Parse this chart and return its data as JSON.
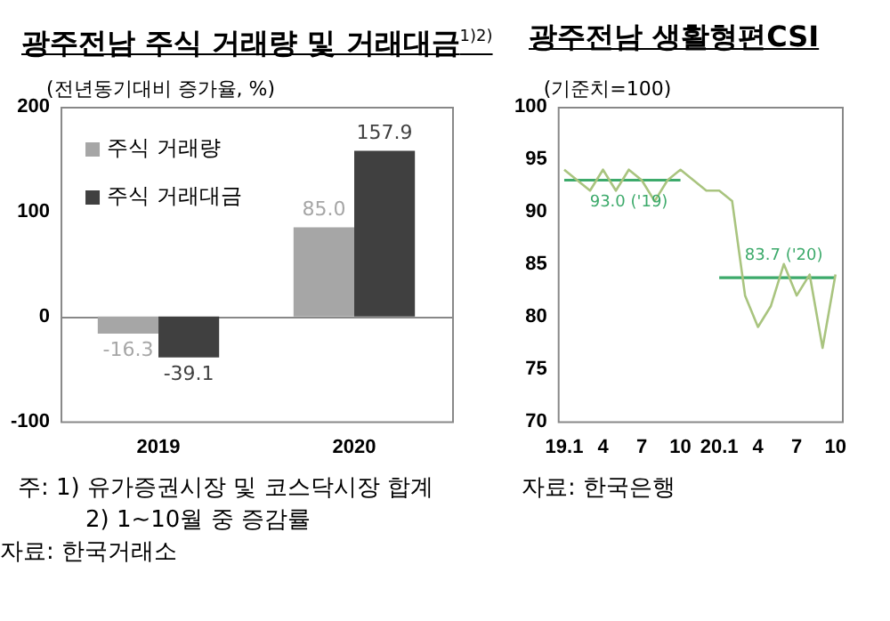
{
  "chart_data": [
    {
      "type": "bar",
      "title": "광주전남 주식 거래량 및 거래대금$^{1)2)}$",
      "ylabel": "(전년동기대비 증가율, %)",
      "categories": [
        "2019",
        "2020"
      ],
      "series": [
        {
          "name": "주식 거래량",
          "color": "#a6a6a6",
          "values": [
            -16.3,
            85.0
          ],
          "value_labels": [
            "-16.3",
            "85.0"
          ]
        },
        {
          "name": "주식 거래대금",
          "color": "#404040",
          "values": [
            -39.1,
            157.9
          ],
          "value_labels": [
            "-39.1",
            "157.9"
          ]
        }
      ],
      "ylim": [
        -100,
        200
      ],
      "yticks": [
        -100,
        0,
        100,
        200
      ],
      "grid": false,
      "legend": "top left",
      "ref_lines": [
        {
          "axis": "y",
          "value": 0,
          "color": "#888888"
        }
      ],
      "annotations": [
        "주: 1) 유가증권시장 및 코스닥시장 합계",
        "2) 1~10월 중 증감률",
        "자료: 한국거래소"
      ]
    },
    {
      "type": "line",
      "title": "광주전남 생활형편CSI",
      "ylabel": "(기준치=100)",
      "categories": [
        "19.1",
        null,
        null,
        "4",
        null,
        null,
        "7",
        null,
        null,
        "10",
        null,
        null,
        "20.1",
        null,
        null,
        "4",
        null,
        null,
        "7",
        null,
        null,
        "10"
      ],
      "series": [
        {
          "color": "#a9c47f",
          "values": [
            94,
            93,
            92,
            94,
            92,
            94,
            93,
            91,
            93,
            94,
            93,
            92,
            92,
            91,
            82,
            79,
            81,
            85,
            82,
            84,
            77,
            84
          ]
        },
        {
          "name": "93.0 ('19)",
          "color": "#3daa6b",
          "values": [
            93.0,
            93.0,
            93.0,
            93.0,
            93.0,
            93.0,
            93.0,
            93.0,
            93.0,
            93.0,
            null,
            null,
            null,
            null,
            null,
            null,
            null,
            null,
            null,
            null,
            null,
            null
          ]
        },
        {
          "name": "83.7 ('20)",
          "color": "#3daa6b",
          "values": [
            null,
            null,
            null,
            null,
            null,
            null,
            null,
            null,
            null,
            null,
            null,
            null,
            83.7,
            83.7,
            83.7,
            83.7,
            83.7,
            83.7,
            83.7,
            83.7,
            83.7,
            83.7
          ]
        }
      ],
      "ylim": [
        70,
        100
      ],
      "yticks": [
        70,
        75,
        80,
        85,
        90,
        95,
        100
      ],
      "grid": false,
      "legend": false,
      "marker": "none",
      "line_style": "solid",
      "annotations": [
        "자료: 한국은행"
      ]
    }
  ]
}
